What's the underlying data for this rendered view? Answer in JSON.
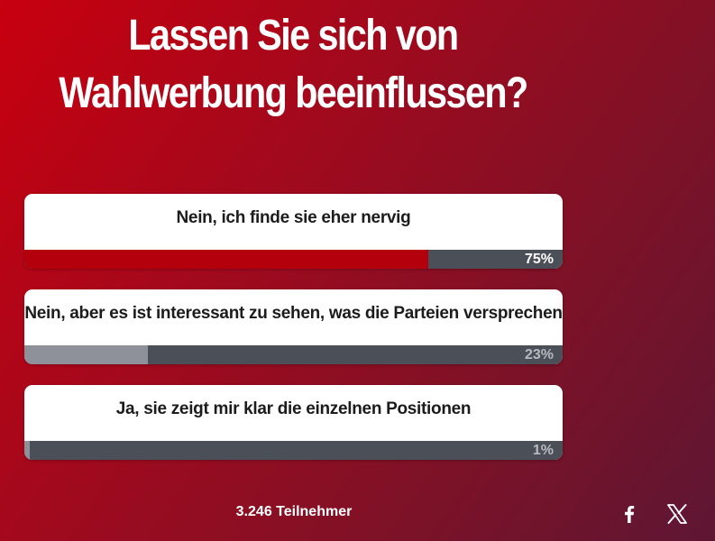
{
  "poll": {
    "question": "Lassen Sie sich von Wahlwerbung beeinflussen?",
    "answers": [
      {
        "label": "Nein, ich finde sie eher nervig",
        "percent": 75,
        "percent_label": "75%",
        "fill_color": "#b3000c",
        "text_color": "#ffffff"
      },
      {
        "label": "Nein, aber es ist interessant zu sehen, was die Parteien versprechen",
        "percent": 23,
        "percent_label": "23%",
        "fill_color": "#8e9199",
        "text_color": "#b7bac0"
      },
      {
        "label": "Ja, sie zeigt mir klar die einzelnen Positionen",
        "percent": 1,
        "percent_label": "1%",
        "fill_color": "#8e9199",
        "text_color": "#b7bac0"
      }
    ],
    "participants": "3.246 Teilnehmer"
  },
  "share": {
    "facebook_icon": "facebook-icon",
    "x_icon": "x-icon"
  },
  "colors": {
    "bar_track": "#4b4f57",
    "background_start": "#c8000f",
    "background_end": "#5e1633"
  }
}
